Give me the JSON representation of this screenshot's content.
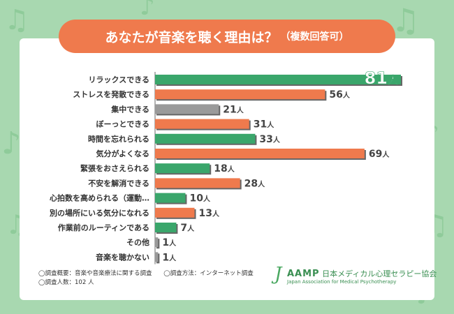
{
  "title": "あなたが音楽を聴く理由は？",
  "subtitle": "（複数回答可）",
  "chart_data": {
    "type": "bar",
    "orientation": "horizontal",
    "unit": "人",
    "xlim": [
      0,
      81
    ],
    "categories": [
      "リラックスできる",
      "ストレスを発散できる",
      "集中できる",
      "ぼーっとできる",
      "時間を忘れられる",
      "気分がよくなる",
      "緊張をおさえられる",
      "不安を解消できる",
      "心拍数を高められる（運動…",
      "別の場所にいる気分になれる",
      "作業前のルーティンである",
      "その他",
      "音楽を聴かない"
    ],
    "values": [
      81,
      56,
      21,
      31,
      33,
      69,
      18,
      28,
      10,
      13,
      7,
      1,
      1
    ],
    "value_labels": [
      "81",
      "56",
      "21",
      "31",
      "33",
      "69",
      "18",
      "28",
      "10",
      "13",
      "7",
      "1",
      "1"
    ],
    "bar_colors": [
      "#3aa66b",
      "#ef7a4d",
      "#9a9a9a",
      "#ef7a4d",
      "#3aa66b",
      "#ef7a4d",
      "#3aa66b",
      "#ef7a4d",
      "#3aa66b",
      "#ef7a4d",
      "#3aa66b",
      "#9a9a9a",
      "#9a9a9a"
    ]
  },
  "footer": {
    "survey_summary": "◯調査概要：音楽や音楽療法に関する調査",
    "survey_method": "◯調査方法：インターネット調査",
    "respondents": "◯調査人数：102 人"
  },
  "logo": {
    "mark": "J",
    "abbr": "AAMP",
    "name_ja": "日本メディカル心理セラピー協会",
    "name_en": "Japan Association for Medical Psychotherapy"
  },
  "colors": {
    "background": "#a8d8b0",
    "accent_orange": "#ef7a4d",
    "accent_green": "#3aa66b",
    "neutral_gray": "#9a9a9a",
    "note_green": "#8fcb9a"
  }
}
